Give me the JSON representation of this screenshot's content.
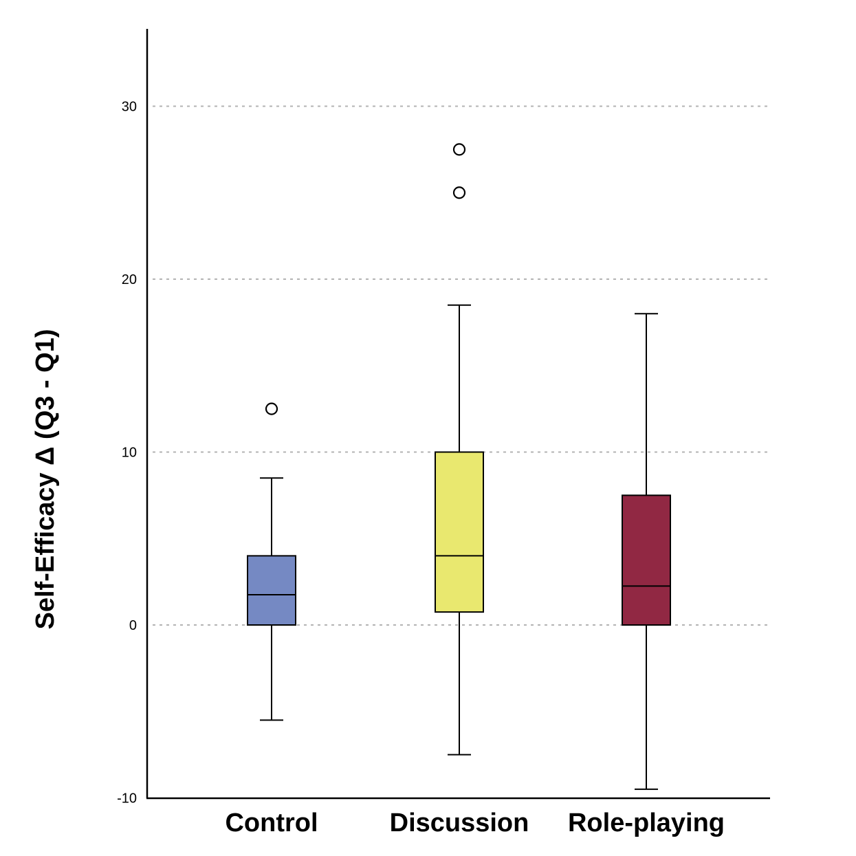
{
  "chart_data": {
    "type": "box",
    "title": "",
    "xlabel": "",
    "ylabel": "Self-Efficacy Δ (Q3 - Q1)",
    "ylim": [
      -10,
      34.5
    ],
    "yticks": [
      30,
      20,
      10,
      0,
      -10
    ],
    "grid": "horizontal dotted at 0, 10, 20, 30",
    "legend": "none",
    "categories": [
      "Control",
      "Discussion",
      "Role-playing"
    ],
    "series": [
      {
        "category": "Control",
        "color": "#7589c3",
        "whisker_low": -5.5,
        "q1": 0,
        "median": 1.75,
        "q3": 4,
        "whisker_high": 8.5,
        "outliers": [
          12.5
        ]
      },
      {
        "category": "Discussion",
        "color": "#e9e86f",
        "whisker_low": -7.5,
        "q1": 0.75,
        "median": 4,
        "q3": 10,
        "whisker_high": 18.5,
        "outliers": [
          25,
          27.5
        ]
      },
      {
        "category": "Role-playing",
        "color": "#912843",
        "whisker_low": -9.5,
        "q1": 0,
        "median": 2.25,
        "q3": 7.5,
        "whisker_high": 18,
        "outliers": []
      }
    ]
  }
}
